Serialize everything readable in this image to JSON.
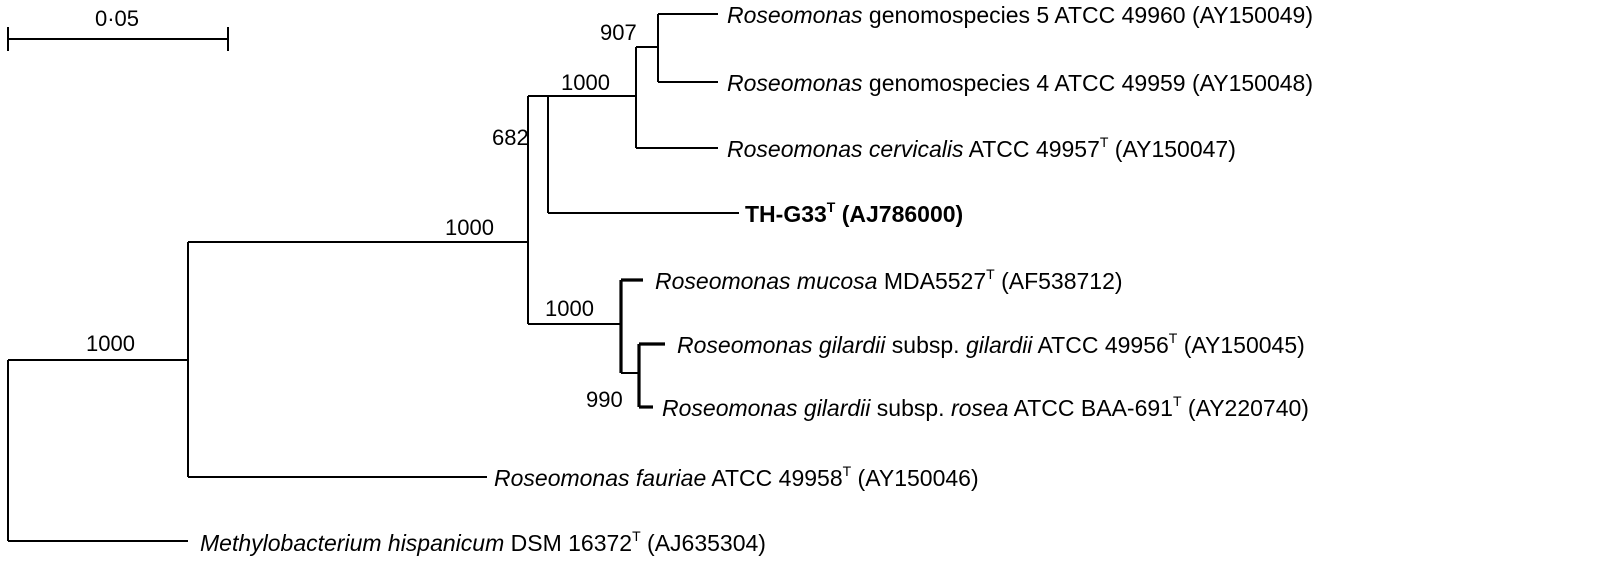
{
  "scale_bar": {
    "label": "0·05"
  },
  "taxa": [
    {
      "id": "t1",
      "genus": "Roseomonas",
      "rest": " genomospecies 5 ATCC 49960 (AY150049)"
    },
    {
      "id": "t2",
      "genus": "Roseomonas",
      "rest": " genomospecies 4 ATCC 49959 (AY150048)"
    },
    {
      "id": "t3",
      "genus": "Roseomonas cervicalis",
      "rest": " ATCC 49957",
      "sup": "T",
      "tail": " (AY150047)"
    },
    {
      "id": "t4",
      "bold": "TH-G33",
      "sup": "T",
      "tail": " (AJ786000)"
    },
    {
      "id": "t5",
      "genus": "Roseomonas mucosa",
      "rest": " MDA5527",
      "sup": "T",
      "tail": " (AF538712)"
    },
    {
      "id": "t6",
      "genus": "Roseomonas gilardii",
      "rest": " subsp. ",
      "species": "gilardii",
      "rest2": " ATCC 49956",
      "sup": "T",
      "tail": " (AY150045)"
    },
    {
      "id": "t7",
      "genus": "Roseomonas gilardii",
      "rest": " subsp. ",
      "species": "rosea",
      "rest2": " ATCC BAA-691",
      "sup": "T",
      "tail": " (AY220740)"
    },
    {
      "id": "t8",
      "genus": "Roseomonas fauriae",
      "rest": " ATCC 49958",
      "sup": "T",
      "tail": " (AY150046)"
    },
    {
      "id": "t9",
      "genus": "Methylobacterium hispanicum",
      "rest": " DSM 16372",
      "sup": "T",
      "tail": " (AJ635304)"
    }
  ],
  "bootstrap": [
    {
      "id": "b907",
      "value": "907"
    },
    {
      "id": "b1000a",
      "value": "1000"
    },
    {
      "id": "b682",
      "value": "682"
    },
    {
      "id": "b1000b",
      "value": "1000"
    },
    {
      "id": "b1000c",
      "value": "1000"
    },
    {
      "id": "b990",
      "value": "990"
    },
    {
      "id": "b1000d",
      "value": "1000"
    }
  ]
}
